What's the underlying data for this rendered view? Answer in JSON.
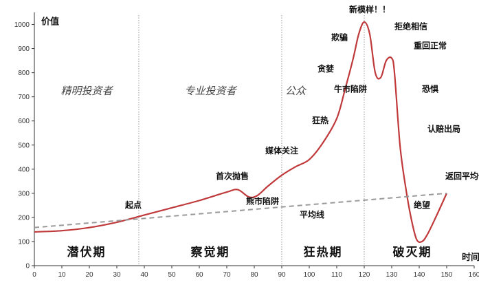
{
  "chart_data": {
    "type": "line",
    "ylabel": "价值",
    "xlabel": "时间",
    "xlim": [
      0,
      160
    ],
    "ylim": [
      0,
      1050
    ],
    "xticks": [
      0,
      10,
      20,
      30,
      40,
      50,
      60,
      70,
      80,
      90,
      100,
      110,
      120,
      130,
      140,
      150,
      160
    ],
    "yticks": [
      0,
      100,
      200,
      300,
      400,
      500,
      600,
      700,
      800,
      900,
      1000
    ],
    "grid": false,
    "series": [
      {
        "color": "#c0393b",
        "style": "solid",
        "x": [
          0,
          10,
          20,
          30,
          40,
          50,
          60,
          70,
          74,
          78,
          81,
          85,
          90,
          95,
          100,
          105,
          110,
          113,
          116,
          118,
          120,
          122,
          124,
          126,
          128,
          130,
          131,
          133,
          135,
          137,
          139,
          141,
          143,
          146,
          150
        ],
        "y": [
          140,
          145,
          158,
          180,
          210,
          240,
          270,
          305,
          315,
          285,
          290,
          330,
          375,
          410,
          440,
          510,
          610,
          730,
          860,
          960,
          1010,
          960,
          800,
          780,
          850,
          860,
          800,
          500,
          330,
          200,
          110,
          100,
          130,
          200,
          300
        ]
      },
      {
        "color": "#999999",
        "style": "dashed",
        "x": [
          0,
          150
        ],
        "y": [
          158,
          300
        ]
      }
    ],
    "phases": {
      "dividers": [
        38,
        90,
        120
      ],
      "labels": [
        "潜伏期",
        "察觉期",
        "狂热期",
        "破灭期"
      ],
      "actors": [
        "精明投资者",
        "专业投资者",
        "公众"
      ]
    },
    "annotations": [
      {
        "text": "新模样！！",
        "x": 122,
        "y": 1050
      },
      {
        "text": "拒绝相信",
        "x": 137,
        "y": 980
      },
      {
        "text": "欺骗",
        "x": 111,
        "y": 935
      },
      {
        "text": "重回正常",
        "x": 144,
        "y": 900
      },
      {
        "text": "贪婪",
        "x": 106,
        "y": 805
      },
      {
        "text": "牛市陷阱",
        "x": 115,
        "y": 720
      },
      {
        "text": "恐惧",
        "x": 144,
        "y": 720
      },
      {
        "text": "狂热",
        "x": 104,
        "y": 590
      },
      {
        "text": "认赔出局",
        "x": 149,
        "y": 555
      },
      {
        "text": "媒体关注",
        "x": 90,
        "y": 465
      },
      {
        "text": "首次抛售",
        "x": 72,
        "y": 360
      },
      {
        "text": "返回平均值",
        "x": 157,
        "y": 360
      },
      {
        "text": "熊市陷阱",
        "x": 83,
        "y": 255
      },
      {
        "text": "起点",
        "x": 36,
        "y": 240
      },
      {
        "text": "平均线",
        "x": 101,
        "y": 200
      },
      {
        "text": "绝望",
        "x": 141,
        "y": 240
      }
    ]
  }
}
